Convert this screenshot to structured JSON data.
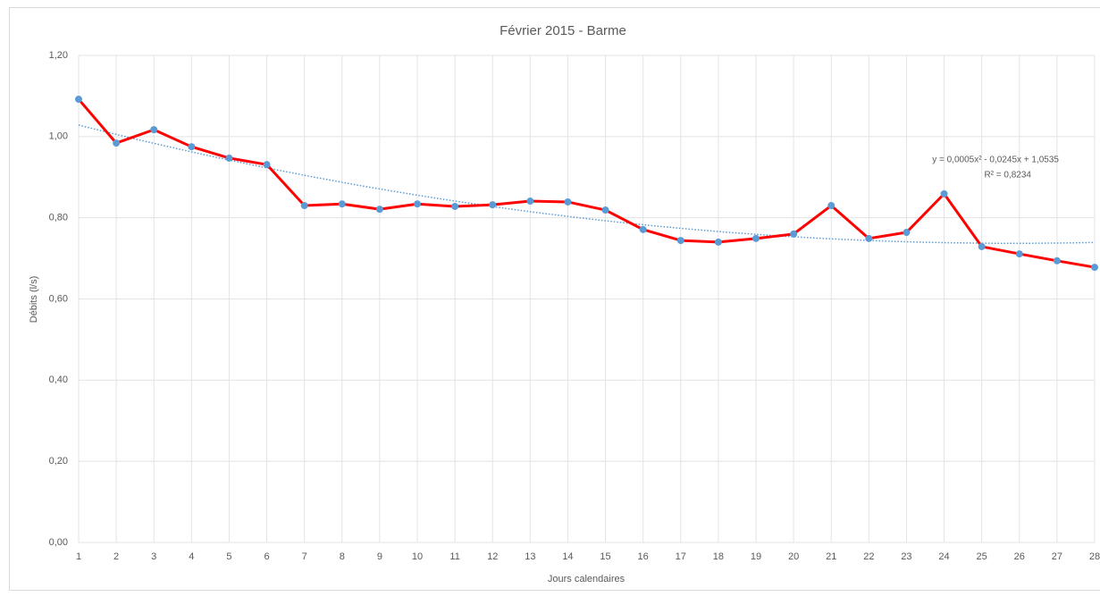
{
  "chart_data": {
    "type": "line",
    "title": "Février 2015 - Barme",
    "xlabel": "Jours calendaires",
    "ylabel": "Débits (l/s)",
    "x": [
      1,
      2,
      3,
      4,
      5,
      6,
      7,
      8,
      9,
      10,
      11,
      12,
      13,
      14,
      15,
      16,
      17,
      18,
      19,
      20,
      21,
      22,
      23,
      24,
      25,
      26,
      27,
      28
    ],
    "series": [
      {
        "name": "Débits",
        "color": "#ff0000",
        "marker_color": "#5b9bd5",
        "values": [
          1.092,
          0.984,
          1.017,
          0.975,
          0.947,
          0.931,
          0.83,
          0.834,
          0.821,
          0.834,
          0.828,
          0.832,
          0.841,
          0.839,
          0.819,
          0.771,
          0.744,
          0.74,
          0.749,
          0.76,
          0.83,
          0.749,
          0.764,
          0.859,
          0.729,
          0.711,
          0.694,
          0.678
        ]
      }
    ],
    "trendline": {
      "type": "polynomial",
      "color": "#5b9bd5",
      "equation": "y = 0,0005x² - 0,0245x + 1,0535",
      "r2": "R² = 0,8234"
    },
    "xlim": [
      1,
      28
    ],
    "xticks": [
      1,
      2,
      3,
      4,
      5,
      6,
      7,
      8,
      9,
      10,
      11,
      12,
      13,
      14,
      15,
      16,
      17,
      18,
      19,
      20,
      21,
      22,
      23,
      24,
      25,
      26,
      27,
      28
    ],
    "ylim": [
      0,
      1.2
    ],
    "yticks": [
      {
        "value": 0,
        "label": "0,00"
      },
      {
        "value": 0.2,
        "label": "0,20"
      },
      {
        "value": 0.4,
        "label": "0,40"
      },
      {
        "value": 0.6,
        "label": "0,60"
      },
      {
        "value": 0.8,
        "label": "0,80"
      },
      {
        "value": 1.0,
        "label": "1,00"
      },
      {
        "value": 1.2,
        "label": "1,20"
      }
    ],
    "grid": true
  }
}
